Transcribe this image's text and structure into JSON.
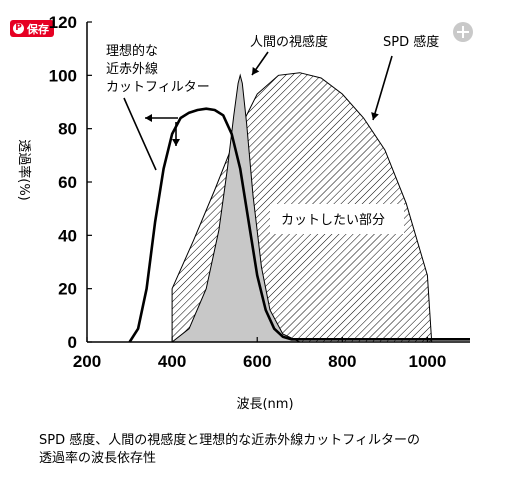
{
  "ui": {
    "save_label": "保存",
    "pin_icon": "pinterest-icon",
    "zoom_icon": "plus-circle-icon"
  },
  "caption": {
    "line1": "SPD 感度、人間の視感度と理想的な近赤外線カットフィルターの",
    "line2": "透過率の波長依存性"
  },
  "chart_data": {
    "type": "line",
    "xlabel": "波長(nm)",
    "ylabel": "透過率(%)",
    "xlim": [
      200,
      1100
    ],
    "ylim": [
      0,
      120
    ],
    "x_ticks": [
      200,
      400,
      600,
      800,
      1000
    ],
    "y_ticks": [
      0,
      20,
      40,
      60,
      80,
      100,
      120
    ],
    "grid": false,
    "annotations": [
      "理想的な",
      "近赤外線",
      "カットフィルター",
      "人間の視感度",
      "SPD 感度",
      "カットしたい部分"
    ],
    "series": [
      {
        "name": "理想的な近赤外線カットフィルター",
        "style": "thick-black-line",
        "x": [
          300,
          320,
          340,
          360,
          380,
          400,
          420,
          440,
          460,
          480,
          500,
          520,
          540,
          560,
          580,
          600,
          620,
          640,
          660,
          680,
          700,
          750,
          800,
          900,
          1000,
          1100
        ],
        "y": [
          0,
          5,
          20,
          45,
          65,
          78,
          84,
          86,
          87,
          87.5,
          87,
          85,
          78,
          65,
          45,
          25,
          12,
          5,
          2,
          1,
          1,
          1,
          1,
          1,
          1,
          1
        ]
      },
      {
        "name": "人間の視感度",
        "style": "gray-fill",
        "x": [
          400,
          440,
          480,
          510,
          530,
          545,
          555,
          560,
          565,
          575,
          590,
          610,
          630,
          660,
          700
        ],
        "y": [
          0,
          5,
          20,
          42,
          65,
          85,
          97,
          100,
          97,
          82,
          55,
          28,
          12,
          3,
          0
        ]
      },
      {
        "name": "SPD 感度",
        "style": "hatched-fill",
        "x": [
          400,
          450,
          500,
          550,
          600,
          650,
          700,
          750,
          800,
          850,
          900,
          950,
          1000,
          1010,
          1030,
          1050,
          1100
        ],
        "y": [
          20,
          38,
          57,
          77,
          93,
          100,
          101,
          99,
          93,
          84,
          72,
          52,
          25,
          0,
          0,
          0,
          0
        ]
      }
    ]
  }
}
